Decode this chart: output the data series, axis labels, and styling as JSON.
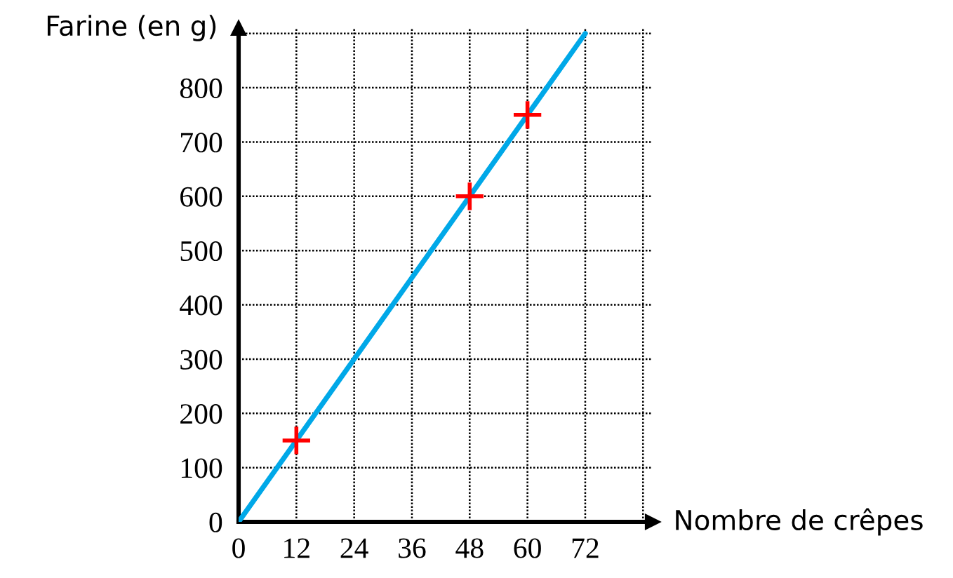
{
  "chart_data": {
    "type": "line",
    "xlabel": "Nombre de crêpes",
    "ylabel": "Farine (en g)",
    "xlim": [
      0,
      86
    ],
    "ylim": [
      0,
      910
    ],
    "xticks": [
      0,
      12,
      24,
      36,
      48,
      60,
      72,
      {
        "value": 84,
        "label": null
      }
    ],
    "yticks": [
      0,
      100,
      200,
      300,
      400,
      500,
      600,
      700,
      800,
      {
        "value": 900,
        "label": null
      }
    ],
    "grid": true,
    "line_style": "solid",
    "series": [
      {
        "color": "#00a8e8",
        "x": [
          0,
          72
        ],
        "values": [
          0,
          900
        ],
        "marker": "none"
      },
      {
        "type": "scatter",
        "color": "#ff0000",
        "x": [
          12,
          48,
          60
        ],
        "values": [
          150,
          600,
          750
        ],
        "marker": "cross"
      }
    ]
  }
}
